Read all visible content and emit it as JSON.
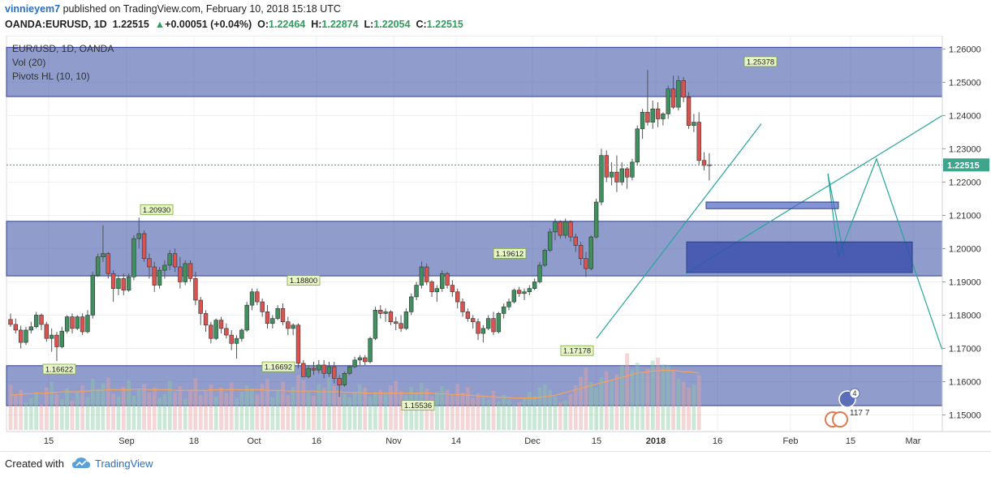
{
  "header": {
    "author": "vinnieyem7",
    "published_text": "published on TradingView.com, February 10, 2018 15:18 UTC",
    "symbol": "OANDA:EURUSD, 1D",
    "last": "1.22515",
    "change_arrow": "▲",
    "change": "+0.00051 (+0.04%)",
    "o_label": "O:",
    "o": "1.22464",
    "h_label": "H:",
    "h": "1.22874",
    "l_label": "L:",
    "l": "1.22054",
    "c_label": "C:",
    "c": "1.22515"
  },
  "legend": {
    "title": "EUR/USD, 1D, OANDA",
    "vol": "Vol (20)",
    "pivots": "Pivots HL (10, 10)"
  },
  "footer": {
    "created_with": "Created with",
    "brand": "TradingView"
  },
  "badges": {
    "count": "4",
    "value": "117 7"
  },
  "colors": {
    "up": "#3f8f5f",
    "down": "#d9534f",
    "zone_fill": "#4a5fad",
    "zone_dark": "#3347a8",
    "trend_line": "#26a69a",
    "price_label_bg": "#3fa48c"
  },
  "chart_data": {
    "type": "candlestick",
    "title": "EUR/USD, 1D, OANDA",
    "ylim": [
      1.145,
      1.264
    ],
    "yticks": [
      "1.26000",
      "1.25000",
      "1.24000",
      "1.23000",
      "1.22000",
      "1.21000",
      "1.20000",
      "1.19000",
      "1.18000",
      "1.17000",
      "1.16000",
      "1.15000"
    ],
    "last_price": "1.22515",
    "xticks": [
      "15",
      "Sep",
      "18",
      "Oct",
      "16",
      "Nov",
      "14",
      "Dec",
      "15",
      "2018",
      "16",
      "Feb",
      "15",
      "Mar"
    ],
    "pivots": [
      {
        "label": "1.16622",
        "value": 1.16622,
        "type": "low"
      },
      {
        "label": "1.20930",
        "value": 1.2093,
        "type": "high"
      },
      {
        "label": "1.18800",
        "value": 1.188,
        "type": "high"
      },
      {
        "label": "1.16692",
        "value": 1.16692,
        "type": "low"
      },
      {
        "label": "1.15536",
        "value": 1.15536,
        "type": "low"
      },
      {
        "label": "1.19612",
        "value": 1.19612,
        "type": "high"
      },
      {
        "label": "1.17178",
        "value": 1.17178,
        "type": "low"
      },
      {
        "label": "1.25378",
        "value": 1.25378,
        "type": "high"
      }
    ],
    "zones": [
      {
        "from": 1.2457,
        "to": 1.2605
      },
      {
        "from": 1.1918,
        "to": 1.2082
      },
      {
        "from": 1.1528,
        "to": 1.1648
      }
    ],
    "candles": [
      [
        1.1787,
        1.1805,
        1.1765,
        1.1772
      ],
      [
        1.1772,
        1.179,
        1.1745,
        1.1755
      ],
      [
        1.1755,
        1.1768,
        1.17,
        1.1718
      ],
      [
        1.1718,
        1.1765,
        1.171,
        1.1755
      ],
      [
        1.1755,
        1.178,
        1.1745,
        1.1765
      ],
      [
        1.1765,
        1.181,
        1.176,
        1.18
      ],
      [
        1.18,
        1.1805,
        1.1755,
        1.1772
      ],
      [
        1.1772,
        1.178,
        1.172,
        1.173
      ],
      [
        1.173,
        1.176,
        1.169,
        1.174
      ],
      [
        1.174,
        1.175,
        1.1662,
        1.1705
      ],
      [
        1.1705,
        1.1765,
        1.17,
        1.1752
      ],
      [
        1.1752,
        1.18,
        1.1745,
        1.1795
      ],
      [
        1.1795,
        1.1805,
        1.1745,
        1.176
      ],
      [
        1.176,
        1.18,
        1.1755,
        1.1795
      ],
      [
        1.1795,
        1.1805,
        1.174,
        1.175
      ],
      [
        1.175,
        1.1815,
        1.1745,
        1.18
      ],
      [
        1.18,
        1.193,
        1.179,
        1.192
      ],
      [
        1.192,
        1.1985,
        1.1915,
        1.1975
      ],
      [
        1.1975,
        1.207,
        1.196,
        1.1985
      ],
      [
        1.1985,
        1.199,
        1.191,
        1.1925
      ],
      [
        1.1925,
        1.1935,
        1.184,
        1.188
      ],
      [
        1.188,
        1.192,
        1.186,
        1.191
      ],
      [
        1.191,
        1.1925,
        1.186,
        1.1875
      ],
      [
        1.1875,
        1.1925,
        1.187,
        1.1915
      ],
      [
        1.1915,
        1.204,
        1.1905,
        1.203
      ],
      [
        1.203,
        1.2093,
        1.2,
        1.2045
      ],
      [
        1.2045,
        1.2055,
        1.196,
        1.197
      ],
      [
        1.197,
        1.1985,
        1.191,
        1.1945
      ],
      [
        1.1945,
        1.196,
        1.187,
        1.189
      ],
      [
        1.189,
        1.1945,
        1.188,
        1.1935
      ],
      [
        1.1935,
        1.1965,
        1.191,
        1.195
      ],
      [
        1.195,
        1.1995,
        1.1935,
        1.1985
      ],
      [
        1.1985,
        1.2,
        1.193,
        1.1945
      ],
      [
        1.1945,
        1.1975,
        1.188,
        1.19
      ],
      [
        1.19,
        1.1965,
        1.189,
        1.1955
      ],
      [
        1.1955,
        1.1965,
        1.19,
        1.191
      ],
      [
        1.191,
        1.193,
        1.183,
        1.1845
      ],
      [
        1.1845,
        1.1855,
        1.177,
        1.1805
      ],
      [
        1.1805,
        1.1815,
        1.175,
        1.177
      ],
      [
        1.177,
        1.178,
        1.1715,
        1.173
      ],
      [
        1.173,
        1.179,
        1.1725,
        1.1785
      ],
      [
        1.1785,
        1.1795,
        1.1745,
        1.176
      ],
      [
        1.176,
        1.1775,
        1.173,
        1.174
      ],
      [
        1.174,
        1.1755,
        1.1695,
        1.1715
      ],
      [
        1.1715,
        1.174,
        1.1669,
        1.173
      ],
      [
        1.173,
        1.176,
        1.172,
        1.1755
      ],
      [
        1.1755,
        1.184,
        1.175,
        1.183
      ],
      [
        1.183,
        1.188,
        1.1815,
        1.187
      ],
      [
        1.187,
        1.188,
        1.183,
        1.184
      ],
      [
        1.184,
        1.185,
        1.1795,
        1.181
      ],
      [
        1.181,
        1.183,
        1.176,
        1.1775
      ],
      [
        1.1775,
        1.18,
        1.176,
        1.179
      ],
      [
        1.179,
        1.183,
        1.1785,
        1.182
      ],
      [
        1.182,
        1.1835,
        1.177,
        1.178
      ],
      [
        1.178,
        1.1795,
        1.174,
        1.176
      ],
      [
        1.176,
        1.1775,
        1.174,
        1.177
      ],
      [
        1.177,
        1.1775,
        1.164,
        1.1655
      ],
      [
        1.1655,
        1.1665,
        1.162,
        1.1615
      ],
      [
        1.1615,
        1.165,
        1.161,
        1.164
      ],
      [
        1.164,
        1.166,
        1.162,
        1.1635
      ],
      [
        1.1635,
        1.1665,
        1.1625,
        1.165
      ],
      [
        1.165,
        1.1665,
        1.161,
        1.1625
      ],
      [
        1.1625,
        1.166,
        1.1615,
        1.1645
      ],
      [
        1.1645,
        1.166,
        1.1595,
        1.161
      ],
      [
        1.161,
        1.162,
        1.1554,
        1.159
      ],
      [
        1.159,
        1.163,
        1.1585,
        1.1625
      ],
      [
        1.1625,
        1.165,
        1.162,
        1.1645
      ],
      [
        1.1645,
        1.1675,
        1.164,
        1.1665
      ],
      [
        1.1665,
        1.168,
        1.165,
        1.1672
      ],
      [
        1.1672,
        1.168,
        1.165,
        1.166
      ],
      [
        1.166,
        1.1735,
        1.1655,
        1.173
      ],
      [
        1.173,
        1.1825,
        1.1725,
        1.1815
      ],
      [
        1.1815,
        1.183,
        1.179,
        1.1805
      ],
      [
        1.1805,
        1.182,
        1.178,
        1.181
      ],
      [
        1.181,
        1.1815,
        1.177,
        1.178
      ],
      [
        1.178,
        1.1795,
        1.1755,
        1.1775
      ],
      [
        1.1775,
        1.18,
        1.175,
        1.176
      ],
      [
        1.176,
        1.182,
        1.1755,
        1.181
      ],
      [
        1.181,
        1.1865,
        1.18,
        1.1855
      ],
      [
        1.1855,
        1.19,
        1.1845,
        1.189
      ],
      [
        1.189,
        1.1961,
        1.188,
        1.1945
      ],
      [
        1.1945,
        1.1955,
        1.189,
        1.19
      ],
      [
        1.19,
        1.1905,
        1.1855,
        1.187
      ],
      [
        1.187,
        1.189,
        1.184,
        1.188
      ],
      [
        1.188,
        1.1935,
        1.187,
        1.1925
      ],
      [
        1.1925,
        1.193,
        1.188,
        1.189
      ],
      [
        1.189,
        1.1905,
        1.1855,
        1.187
      ],
      [
        1.187,
        1.188,
        1.182,
        1.184
      ],
      [
        1.184,
        1.185,
        1.1795,
        1.181
      ],
      [
        1.181,
        1.182,
        1.178,
        1.179
      ],
      [
        1.179,
        1.18,
        1.176,
        1.178
      ],
      [
        1.178,
        1.179,
        1.1725,
        1.1745
      ],
      [
        1.1745,
        1.177,
        1.1718,
        1.176
      ],
      [
        1.176,
        1.18,
        1.1755,
        1.179
      ],
      [
        1.179,
        1.181,
        1.174,
        1.175
      ],
      [
        1.175,
        1.181,
        1.1745,
        1.1805
      ],
      [
        1.1805,
        1.1835,
        1.179,
        1.1825
      ],
      [
        1.1825,
        1.185,
        1.1815,
        1.184
      ],
      [
        1.184,
        1.188,
        1.1835,
        1.1875
      ],
      [
        1.1875,
        1.1885,
        1.1855,
        1.1865
      ],
      [
        1.1865,
        1.188,
        1.1845,
        1.187
      ],
      [
        1.187,
        1.189,
        1.186,
        1.188
      ],
      [
        1.188,
        1.191,
        1.1875,
        1.19
      ],
      [
        1.19,
        1.196,
        1.1895,
        1.195
      ],
      [
        1.195,
        1.2,
        1.1945,
        1.1995
      ],
      [
        1.1995,
        1.206,
        1.199,
        1.205
      ],
      [
        1.205,
        1.209,
        1.2025,
        1.208
      ],
      [
        1.208,
        1.2085,
        1.203,
        1.204
      ],
      [
        1.204,
        1.209,
        1.203,
        1.208
      ],
      [
        1.208,
        1.2085,
        1.202,
        1.2035
      ],
      [
        1.2035,
        1.2045,
        1.199,
        1.201
      ],
      [
        1.201,
        1.202,
        1.195,
        1.197
      ],
      [
        1.197,
        1.199,
        1.1915,
        1.194
      ],
      [
        1.194,
        1.204,
        1.1935,
        1.2035
      ],
      [
        1.2035,
        1.215,
        1.203,
        1.214
      ],
      [
        1.214,
        1.23,
        1.213,
        1.228
      ],
      [
        1.228,
        1.2295,
        1.22,
        1.2215
      ],
      [
        1.2215,
        1.226,
        1.219,
        1.223
      ],
      [
        1.223,
        1.228,
        1.217,
        1.22
      ],
      [
        1.22,
        1.226,
        1.219,
        1.224
      ],
      [
        1.224,
        1.2245,
        1.218,
        1.2215
      ],
      [
        1.2215,
        1.227,
        1.2205,
        1.226
      ],
      [
        1.226,
        1.237,
        1.225,
        1.236
      ],
      [
        1.236,
        1.242,
        1.233,
        1.241
      ],
      [
        1.241,
        1.2537,
        1.237,
        1.238
      ],
      [
        1.238,
        1.2445,
        1.236,
        1.242
      ],
      [
        1.242,
        1.244,
        1.2365,
        1.239
      ],
      [
        1.239,
        1.241,
        1.237,
        1.2405
      ],
      [
        1.2405,
        1.249,
        1.239,
        1.248
      ],
      [
        1.248,
        1.252,
        1.242,
        1.2425
      ],
      [
        1.2425,
        1.252,
        1.2415,
        1.2505
      ],
      [
        1.2505,
        1.2515,
        1.244,
        1.2455
      ],
      [
        1.2455,
        1.247,
        1.236,
        1.237
      ],
      [
        1.237,
        1.2405,
        1.235,
        1.238
      ],
      [
        1.238,
        1.241,
        1.225,
        1.2265
      ],
      [
        1.2265,
        1.229,
        1.2235,
        1.225
      ],
      [
        1.225,
        1.2287,
        1.2205,
        1.2252
      ]
    ],
    "volume": [
      62,
      48,
      55,
      38,
      44,
      52,
      35,
      58,
      66,
      49,
      42,
      57,
      40,
      53,
      61,
      45,
      70,
      56,
      64,
      72,
      50,
      46,
      59,
      68,
      47,
      55,
      63,
      51,
      58,
      44,
      49,
      67,
      52,
      60,
      43,
      55,
      71,
      48,
      53,
      62,
      46,
      58,
      50,
      65,
      44,
      52,
      61,
      57,
      49,
      63,
      70,
      45,
      54,
      66,
      48,
      59,
      75,
      68,
      52,
      47,
      63,
      58,
      72,
      60,
      55,
      49,
      45,
      51,
      63,
      58,
      46,
      52,
      55,
      49,
      61,
      67,
      53,
      48,
      59,
      50,
      64,
      57,
      46,
      52,
      60,
      55,
      48,
      63,
      51,
      58,
      44,
      50,
      46,
      41,
      54,
      39,
      48,
      42,
      35,
      38,
      44,
      52,
      47,
      58,
      63,
      55,
      46,
      38,
      40,
      49,
      61,
      73,
      85,
      66,
      58,
      72,
      80,
      69,
      76,
      88,
      105,
      83,
      92,
      78,
      84,
      95,
      99,
      90,
      88,
      81,
      70,
      66,
      58,
      62,
      75
    ],
    "volume_ma": [
      50,
      51,
      51,
      52,
      52,
      53,
      53,
      53,
      54,
      54,
      55,
      55,
      55,
      55,
      56,
      56,
      57,
      57,
      57,
      58,
      58,
      58,
      58,
      58,
      59,
      59,
      59,
      58,
      58,
      58,
      58,
      58,
      57,
      57,
      57,
      57,
      57,
      57,
      57,
      58,
      58,
      58,
      58,
      58,
      58,
      58,
      58,
      58,
      58,
      58,
      57,
      57,
      57,
      57,
      56,
      56,
      56,
      56,
      56,
      56,
      55,
      55,
      55,
      55,
      55,
      54,
      54,
      54,
      54,
      53,
      53,
      53,
      53,
      53,
      53,
      53,
      53,
      53,
      53,
      53,
      53,
      53,
      53,
      52,
      52,
      52,
      51,
      51,
      51,
      50,
      50,
      49,
      49,
      48,
      48,
      47,
      47,
      47,
      46,
      46,
      46,
      46,
      46,
      47,
      48,
      49,
      50,
      52,
      54,
      56,
      58,
      60,
      62,
      64,
      66,
      68,
      70,
      72,
      74,
      76,
      78,
      80,
      82,
      83,
      84,
      85,
      85,
      86,
      86,
      86,
      85,
      84,
      84,
      83,
      82
    ]
  }
}
